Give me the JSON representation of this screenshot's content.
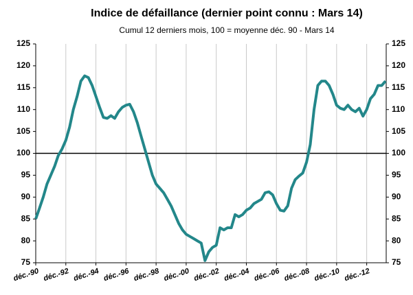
{
  "chart_data": {
    "type": "line",
    "title": "Indice de défaillance (dernier point connu : Mars 14)",
    "subtitle": "Cumul 12 derniers mois, 100 = moyenne déc. 90 - Mars 14",
    "categories": [
      "déc.-90",
      null,
      null,
      null,
      null,
      null,
      null,
      null,
      "déc.-92",
      null,
      null,
      null,
      null,
      null,
      null,
      null,
      "déc.-94",
      null,
      null,
      null,
      null,
      null,
      null,
      null,
      "déc.-96",
      null,
      null,
      null,
      null,
      null,
      null,
      null,
      "déc.-98",
      null,
      null,
      null,
      null,
      null,
      null,
      null,
      "déc.-00",
      null,
      null,
      null,
      null,
      null,
      null,
      null,
      "déc.-02",
      null,
      null,
      null,
      null,
      null,
      null,
      null,
      "déc.-04",
      null,
      null,
      null,
      null,
      null,
      null,
      null,
      "déc.-06",
      null,
      null,
      null,
      null,
      null,
      null,
      null,
      "déc.-08",
      null,
      null,
      null,
      null,
      null,
      null,
      null,
      "déc.-10",
      null,
      null,
      null,
      null,
      null,
      null,
      null,
      "déc.-12",
      null,
      null,
      null,
      null,
      null
    ],
    "series": [
      {
        "color": "#23878a",
        "values": [
          85,
          87.5,
          90,
          93,
          95,
          97,
          99.5,
          101,
          103,
          106,
          110,
          113,
          116.5,
          117.7,
          117.3,
          115.5,
          113,
          110.5,
          108.2,
          108,
          108.6,
          108,
          109.5,
          110.5,
          111,
          111.2,
          109.5,
          107,
          104,
          101,
          98,
          95,
          93,
          92,
          91,
          89.5,
          88,
          86,
          84,
          82.5,
          81.5,
          81,
          80.5,
          80,
          79.5,
          75.5,
          77.5,
          78.5,
          79,
          83,
          82.5,
          83,
          83,
          86,
          85.5,
          86,
          87,
          87.5,
          88.5,
          89,
          89.5,
          91,
          91.2,
          90.5,
          88.5,
          87,
          86.8,
          88,
          92,
          94,
          94.8,
          95.5,
          98,
          102,
          110,
          115.5,
          116.5,
          116.5,
          115.5,
          113.5,
          111,
          110.3,
          110,
          111,
          110,
          109.5,
          110.3,
          108.5,
          110,
          112.5,
          113.5,
          115.5,
          115.5,
          116.5
        ]
      }
    ],
    "ylim": [
      75,
      125
    ],
    "yticks": [
      75,
      80,
      85,
      90,
      95,
      100,
      105,
      110,
      115,
      120,
      125
    ],
    "y2lim": [
      75,
      125
    ],
    "y2ticks": [
      75,
      80,
      85,
      90,
      95,
      100,
      105,
      110,
      115,
      120,
      125
    ],
    "reference_line": 100,
    "grid": "x"
  }
}
